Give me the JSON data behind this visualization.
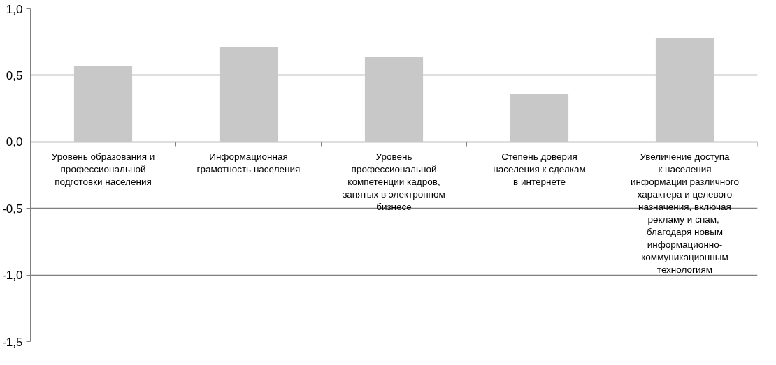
{
  "chart_data": {
    "type": "bar",
    "categories": [
      "Уровень образования и\nпрофессиональной\nподготовки населения",
      "Информационная\nграмотность населения",
      "Уровень\nпрофессиональной\nкомпетенции кадров,\nзанятых в электронном\nбизнесе",
      "Степень доверия\nнаселения к сделкам\nв интернете",
      "Увеличение доступа\nк населения\nинформации различного\nхарактера и целевого\nназначения, включая\nрекламу и  спам,\nблагодаря новым\nинформационно-\nкоммуникационным\nтехнологиям"
    ],
    "values": [
      0.57,
      0.71,
      0.64,
      0.36,
      0.78
    ],
    "color": "#c8c8c8",
    "ylim": [
      -1.5,
      1.0
    ],
    "yticks": [
      {
        "value": 1.0,
        "label": "1,0"
      },
      {
        "value": 0.5,
        "label": "0,5"
      },
      {
        "value": 0.0,
        "label": "0,0"
      },
      {
        "value": -0.5,
        "label": "-0,5"
      },
      {
        "value": -1.0,
        "label": "-1,0"
      },
      {
        "value": -1.5,
        "label": "-1,5"
      }
    ],
    "grid": "y"
  }
}
